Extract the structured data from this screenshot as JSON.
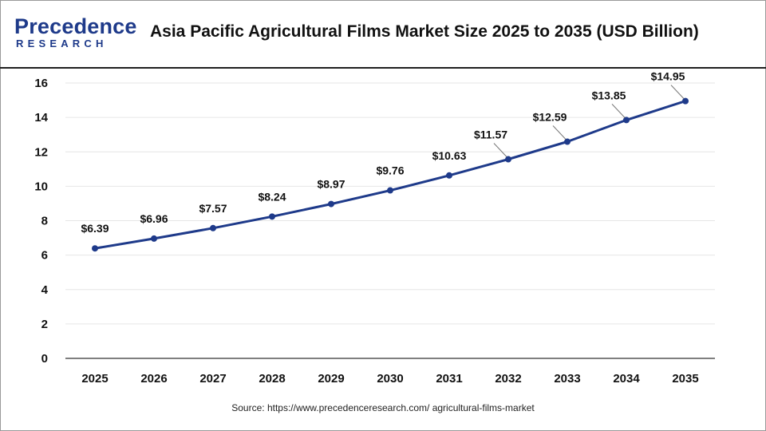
{
  "brand": {
    "logo_word": "Precedence",
    "logo_sub": "RESEARCH"
  },
  "header": {
    "title": "Asia Pacific Agricultural Films Market Size 2025 to 2035 (USD Billion)"
  },
  "footer": {
    "source": "Source: https://www.precedenceresearch.com/ agricultural-films-market"
  },
  "colors": {
    "line": "#1e3a8a",
    "point": "#1e3a8a",
    "grid": "#e6e6e6",
    "axis": "#333333"
  },
  "chart_data": {
    "type": "line",
    "title": "Asia Pacific Agricultural Films Market Size 2025 to 2035 (USD Billion)",
    "xlabel": "",
    "ylabel": "",
    "categories": [
      "2025",
      "2026",
      "2027",
      "2028",
      "2029",
      "2030",
      "2031",
      "2032",
      "2033",
      "2034",
      "2035"
    ],
    "values": [
      6.39,
      6.96,
      7.57,
      8.24,
      8.97,
      9.76,
      10.63,
      11.57,
      12.59,
      13.85,
      14.95
    ],
    "labels": [
      "$6.39",
      "$6.96",
      "$7.57",
      "$8.24",
      "$8.97",
      "$9.76",
      "$10.63",
      "$11.57",
      "$12.59",
      "$13.85",
      "$14.95"
    ],
    "ylim": [
      0,
      16
    ],
    "yticks": [
      0,
      2,
      4,
      6,
      8,
      10,
      12,
      14,
      16
    ],
    "grid": true,
    "legend": "none"
  }
}
